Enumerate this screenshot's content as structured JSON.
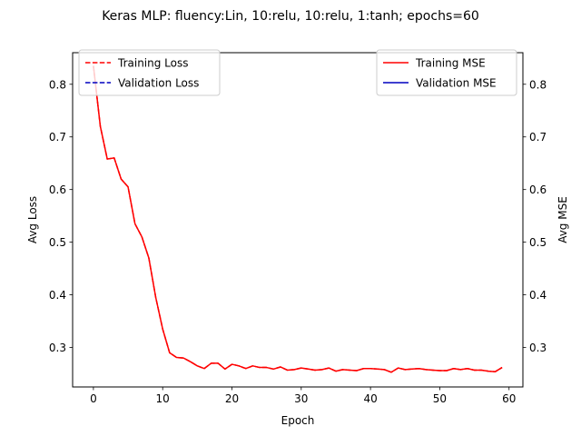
{
  "chart_data": {
    "type": "line",
    "title": "Keras MLP: fluency:Lin, 10:relu, 10:relu, 1:tanh; epochs=60",
    "xlabel": "Epoch",
    "ylabel_left": "Avg Loss",
    "ylabel_right": "Avg MSE",
    "xlim": [
      -3,
      62
    ],
    "ylim": [
      0.225,
      0.86
    ],
    "x_ticks": [
      0,
      10,
      20,
      30,
      40,
      50,
      60
    ],
    "y_ticks": [
      0.3,
      0.4,
      0.5,
      0.6,
      0.7,
      0.8
    ],
    "legend_left": {
      "placement": "top-left",
      "entries": [
        {
          "label": "Training Loss",
          "color": "#ff0000",
          "style": "dashed"
        },
        {
          "label": "Validation Loss",
          "color": "#0000bf",
          "style": "dashed"
        }
      ]
    },
    "legend_right": {
      "placement": "top-right",
      "entries": [
        {
          "label": "Training MSE",
          "color": "#ff0000",
          "style": "solid"
        },
        {
          "label": "Validation MSE",
          "color": "#0000bf",
          "style": "solid"
        }
      ]
    },
    "x": [
      0,
      1,
      2,
      3,
      4,
      5,
      6,
      7,
      8,
      9,
      10,
      11,
      12,
      13,
      14,
      15,
      16,
      17,
      18,
      19,
      20,
      21,
      22,
      23,
      24,
      25,
      26,
      27,
      28,
      29,
      30,
      31,
      32,
      33,
      34,
      35,
      36,
      37,
      38,
      39,
      40,
      41,
      42,
      43,
      44,
      45,
      46,
      47,
      48,
      49,
      50,
      51,
      52,
      53,
      54,
      55,
      56,
      57,
      58,
      59
    ],
    "series": [
      {
        "name": "Training Loss",
        "axis": "left",
        "color": "#ff0000",
        "style": "dashed",
        "values": [
          0.835,
          0.72,
          0.658,
          0.66,
          0.62,
          0.605,
          0.535,
          0.51,
          0.47,
          0.395,
          0.335,
          0.29,
          0.281,
          0.28,
          0.273,
          0.265,
          0.26,
          0.27,
          0.27,
          0.259,
          0.268,
          0.265,
          0.26,
          0.265,
          0.262,
          0.262,
          0.259,
          0.263,
          0.257,
          0.258,
          0.261,
          0.259,
          0.257,
          0.258,
          0.261,
          0.255,
          0.258,
          0.257,
          0.256,
          0.26,
          0.26,
          0.259,
          0.258,
          0.253,
          0.261,
          0.258,
          0.259,
          0.26,
          0.258,
          0.257,
          0.256,
          0.256,
          0.26,
          0.258,
          0.26,
          0.257,
          0.257,
          0.255,
          0.254,
          0.262
        ]
      },
      {
        "name": "Training MSE",
        "axis": "right",
        "color": "#ff0000",
        "style": "solid",
        "values": [
          0.835,
          0.72,
          0.658,
          0.66,
          0.62,
          0.605,
          0.535,
          0.51,
          0.47,
          0.395,
          0.335,
          0.29,
          0.281,
          0.28,
          0.273,
          0.265,
          0.26,
          0.27,
          0.27,
          0.259,
          0.268,
          0.265,
          0.26,
          0.265,
          0.262,
          0.262,
          0.259,
          0.263,
          0.257,
          0.258,
          0.261,
          0.259,
          0.257,
          0.258,
          0.261,
          0.255,
          0.258,
          0.257,
          0.256,
          0.26,
          0.26,
          0.259,
          0.258,
          0.253,
          0.261,
          0.258,
          0.259,
          0.26,
          0.258,
          0.257,
          0.256,
          0.256,
          0.26,
          0.258,
          0.26,
          0.257,
          0.257,
          0.255,
          0.254,
          0.262
        ]
      }
    ]
  }
}
